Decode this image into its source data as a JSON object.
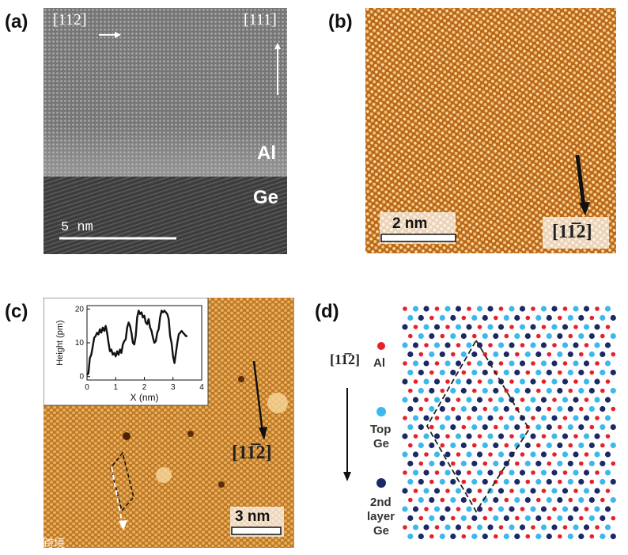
{
  "panels": {
    "a": {
      "label": "(a)",
      "dir_x": "[112]",
      "dir_y": "[111]",
      "layer_top": "Al",
      "layer_bottom": "Ge",
      "scalebar": "5 nm"
    },
    "b": {
      "label": "(b)",
      "scalebar": "2 nm",
      "dir": "[11̅2]"
    },
    "c": {
      "label": "(c)",
      "scalebar": "3 nm",
      "dir": "[11̅2]",
      "inset": {
        "ylabel": "Height (pm)",
        "xlabel": "X (nm)"
      }
    },
    "d": {
      "label": "(d)",
      "dir": "[11̅2]",
      "legend": [
        "Al",
        "Top Ge",
        "2nd layer Ge"
      ],
      "legend_lines": {
        "al": "Al",
        "top1": "Top",
        "top2": "Ge",
        "sec1": "2nd",
        "sec2": "layer",
        "sec3": "Ge"
      }
    }
  },
  "watermark": "六数跨境",
  "colors": {
    "al": "#e8202a",
    "top_ge": "#3db8ec",
    "second_ge": "#1b2a66",
    "stm": "#c8781e"
  },
  "chart_data": {
    "type": "line",
    "title": "",
    "xlabel": "X (nm)",
    "ylabel": "Height (pm)",
    "xlim": [
      0,
      4
    ],
    "ylim": [
      -1,
      21
    ],
    "xticks": [
      0,
      1,
      2,
      3,
      4
    ],
    "yticks": [
      0,
      10,
      20
    ],
    "series": [
      {
        "name": "height profile",
        "x": [
          0.0,
          0.05,
          0.1,
          0.15,
          0.2,
          0.25,
          0.3,
          0.35,
          0.4,
          0.45,
          0.5,
          0.55,
          0.6,
          0.65,
          0.7,
          0.75,
          0.8,
          0.85,
          0.9,
          0.95,
          1.0,
          1.05,
          1.1,
          1.15,
          1.2,
          1.25,
          1.3,
          1.35,
          1.4,
          1.45,
          1.5,
          1.55,
          1.6,
          1.65,
          1.7,
          1.75,
          1.8,
          1.85,
          1.9,
          1.95,
          2.0,
          2.05,
          2.1,
          2.15,
          2.2,
          2.25,
          2.3,
          2.35,
          2.4,
          2.45,
          2.5,
          2.55,
          2.6,
          2.65,
          2.7,
          2.75,
          2.8,
          2.85,
          2.9,
          2.95,
          3.0,
          3.05,
          3.1,
          3.15,
          3.2,
          3.25,
          3.3,
          3.35,
          3.4,
          3.45,
          3.5
        ],
        "y": [
          0.5,
          1.0,
          5.5,
          6.5,
          9.0,
          11.5,
          12.0,
          13.0,
          12.5,
          14.0,
          13.0,
          14.5,
          13.5,
          15.0,
          13.0,
          10.0,
          7.5,
          8.0,
          6.5,
          7.0,
          6.0,
          7.5,
          6.5,
          8.0,
          7.0,
          9.5,
          10.5,
          11.0,
          14.5,
          16.0,
          15.0,
          13.0,
          10.0,
          9.5,
          12.0,
          17.5,
          19.5,
          18.5,
          19.0,
          17.5,
          18.0,
          16.0,
          15.5,
          17.0,
          14.5,
          13.5,
          11.5,
          10.0,
          10.5,
          13.0,
          14.0,
          17.5,
          19.5,
          19.0,
          19.5,
          19.0,
          18.5,
          17.0,
          12.0,
          10.0,
          6.0,
          4.0,
          7.0,
          10.0,
          12.5,
          13.0,
          13.5,
          13.0,
          12.5,
          12.0,
          12.0
        ]
      }
    ]
  }
}
